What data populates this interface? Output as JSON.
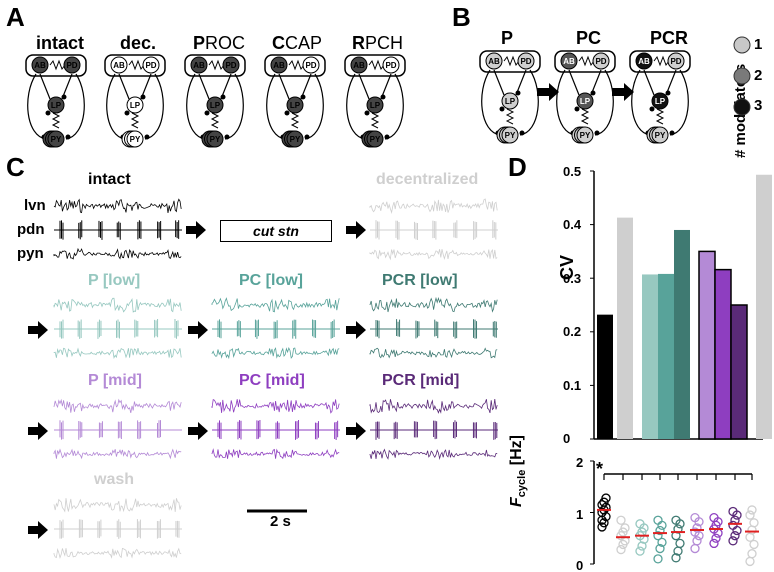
{
  "panels": {
    "a": "A",
    "b": "B",
    "c": "C",
    "d": "D"
  },
  "panel_a": {
    "conditions": [
      {
        "label": "intact",
        "bold": "intact",
        "rest": ""
      },
      {
        "label": "dec.",
        "bold": "dec.",
        "rest": ""
      },
      {
        "label": "PROC",
        "bold": "P",
        "rest": "ROC"
      },
      {
        "label": "CCAP",
        "bold": "C",
        "rest": "CAP"
      },
      {
        "label": "RPCH",
        "bold": "R",
        "rest": "PCH"
      }
    ],
    "neurons": {
      "ab": "AB",
      "pd": "PD",
      "lp": "LP",
      "py": "PY"
    }
  },
  "panel_b": {
    "conditions": [
      "P",
      "PC",
      "PCR"
    ],
    "legend_title": "# modulators",
    "legend": [
      {
        "n": "1",
        "color": "#c8c8c8"
      },
      {
        "n": "2",
        "color": "#7a7a7a"
      },
      {
        "n": "3",
        "color": "#111111"
      }
    ]
  },
  "panel_c": {
    "channels": [
      "lvn",
      "pdn",
      "pyn"
    ],
    "traces": [
      {
        "id": "intact",
        "title": "intact",
        "color": "#000000"
      },
      {
        "id": "decentralized",
        "title": "decentralized",
        "color": "#cfcfcf"
      },
      {
        "id": "p_low",
        "title": "P [low]",
        "color": "#97c8c0"
      },
      {
        "id": "pc_low",
        "title": "PC [low]",
        "color": "#58a39a"
      },
      {
        "id": "pcr_low",
        "title": "PCR [low]",
        "color": "#3f7a72"
      },
      {
        "id": "p_mid",
        "title": "P [mid]",
        "color": "#b48ad6"
      },
      {
        "id": "pc_mid",
        "title": "PC [mid]",
        "color": "#8e3ec0"
      },
      {
        "id": "pcr_mid",
        "title": "PCR [mid]",
        "color": "#5a2a78"
      },
      {
        "id": "wash",
        "title": "wash",
        "color": "#cfcfcf"
      }
    ],
    "cut_box": "cut stn",
    "scale_bar": "2 s"
  },
  "chart_data": [
    {
      "type": "bar",
      "ylabel": "CV",
      "ylim": [
        0,
        0.5
      ],
      "yticks": [
        "0",
        "0.1",
        "0.2",
        "0.3",
        "0.4",
        "0.5"
      ],
      "categories": [
        "intact",
        "decentralized",
        "P [low]",
        "PC [low]",
        "PCR [low]",
        "P [mid]",
        "PC [mid]",
        "PCR [mid]",
        "wash"
      ],
      "values": [
        0.232,
        0.413,
        0.307,
        0.308,
        0.39,
        0.35,
        0.316,
        0.25,
        0.493
      ],
      "colors": [
        "#000000",
        "#cfcfcf",
        "#97c8c0",
        "#58a39a",
        "#3f7a72",
        "#b48ad6",
        "#8e3ec0",
        "#5a2a78",
        "#cfcfcf"
      ]
    },
    {
      "type": "scatter",
      "ylabel_main": "F",
      "ylabel_sub": "cycle",
      "ylabel_unit": "[Hz]",
      "ylim": [
        0,
        2
      ],
      "yticks": [
        "0",
        "1",
        "2"
      ],
      "categories": [
        "intact",
        "decentralized",
        "P [low]",
        "PC [low]",
        "PCR [low]",
        "P [mid]",
        "PC [mid]",
        "PCR [mid]",
        "wash"
      ],
      "means": [
        1.05,
        0.52,
        0.55,
        0.6,
        0.62,
        0.66,
        0.68,
        0.78,
        0.63
      ],
      "points": [
        [
          0.72,
          0.8,
          0.92,
          1.0,
          1.05,
          1.1,
          1.15,
          1.2,
          1.28,
          0.85
        ],
        [
          0.28,
          0.38,
          0.45,
          0.55,
          0.62,
          0.7,
          0.85
        ],
        [
          0.25,
          0.35,
          0.48,
          0.55,
          0.62,
          0.7,
          0.78
        ],
        [
          0.1,
          0.3,
          0.42,
          0.55,
          0.65,
          0.75,
          0.85
        ],
        [
          0.12,
          0.25,
          0.4,
          0.55,
          0.68,
          0.78,
          0.85
        ],
        [
          0.3,
          0.45,
          0.55,
          0.62,
          0.7,
          0.82,
          0.9
        ],
        [
          0.4,
          0.5,
          0.6,
          0.68,
          0.75,
          0.82,
          0.9
        ],
        [
          0.45,
          0.55,
          0.65,
          0.75,
          0.85,
          0.95,
          1.02
        ],
        [
          0.05,
          0.2,
          0.38,
          0.52,
          0.66,
          0.8,
          0.95,
          1.05
        ]
      ],
      "significance": "*"
    }
  ]
}
